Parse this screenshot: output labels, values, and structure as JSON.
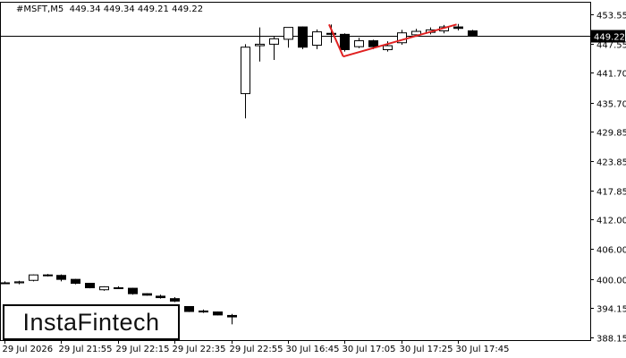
{
  "header": {
    "symbol": "#MSFT,M5",
    "ohlc": "449.34 449.34 449.21 449.22"
  },
  "logo": {
    "text": "InstaFintech"
  },
  "colors": {
    "pattern_line": "#e02020",
    "bull_fill": "#ffffff",
    "bear_fill": "#000000",
    "grid": "#000000",
    "current_price_bg": "#000000",
    "current_price_text": "#ffffff"
  },
  "chart_data": {
    "type": "candlestick",
    "symbol": "#MSFT",
    "timeframe": "M5",
    "y_ticks": [
      453.55,
      447.55,
      441.7,
      435.7,
      429.85,
      423.85,
      417.85,
      412.0,
      406.0,
      400.0,
      394.15,
      388.15
    ],
    "ylim": [
      388.15,
      453.55
    ],
    "current_price": "449.22",
    "x_ticks": [
      {
        "i": 0,
        "label": "29 Jul 2026"
      },
      {
        "i": 4,
        "label": "29 Jul 21:55"
      },
      {
        "i": 8,
        "label": "29 Jul 22:15"
      },
      {
        "i": 12,
        "label": "29 Jul 22:35"
      },
      {
        "i": 16,
        "label": "29 Jul 22:55"
      },
      {
        "i": 20,
        "label": "30 Jul 16:45"
      },
      {
        "i": 24,
        "label": "30 Jul 17:05"
      },
      {
        "i": 28,
        "label": "30 Jul 17:25"
      },
      {
        "i": 32,
        "label": "30 Jul 17:45"
      }
    ],
    "candles": [
      [
        399.2,
        399.5,
        399.0,
        399.2
      ],
      [
        399.2,
        399.6,
        398.9,
        399.4
      ],
      [
        399.7,
        400.9,
        399.5,
        400.8
      ],
      [
        400.8,
        401.0,
        400.5,
        400.7
      ],
      [
        400.7,
        400.9,
        399.5,
        399.9
      ],
      [
        399.9,
        400.0,
        398.9,
        399.1
      ],
      [
        399.1,
        399.2,
        398.1,
        398.2
      ],
      [
        397.8,
        398.5,
        397.6,
        398.4
      ],
      [
        398.2,
        398.5,
        398.0,
        398.1
      ],
      [
        398.1,
        398.2,
        396.8,
        397.0
      ],
      [
        397.0,
        397.1,
        396.6,
        396.7
      ],
      [
        396.5,
        396.8,
        396.0,
        396.2
      ],
      [
        396.0,
        396.3,
        395.3,
        395.5
      ],
      [
        394.4,
        394.4,
        393.3,
        393.4
      ],
      [
        393.5,
        393.8,
        393.1,
        393.3
      ],
      [
        393.3,
        393.4,
        392.6,
        392.7
      ],
      [
        392.6,
        392.9,
        390.8,
        392.3
      ],
      [
        437.5,
        447.5,
        432.5,
        446.9
      ],
      [
        447.2,
        450.9,
        444.0,
        447.5
      ],
      [
        447.5,
        449.0,
        444.3,
        448.6
      ],
      [
        448.5,
        450.9,
        446.8,
        450.9
      ],
      [
        451.0,
        451.1,
        446.5,
        446.9
      ],
      [
        447.3,
        450.5,
        446.5,
        450.0
      ],
      [
        449.7,
        451.5,
        447.8,
        449.5
      ],
      [
        449.5,
        449.7,
        446.0,
        446.4
      ],
      [
        447.0,
        448.8,
        446.7,
        448.2
      ],
      [
        448.2,
        448.4,
        446.5,
        447.0
      ],
      [
        446.4,
        448.1,
        446.0,
        447.2
      ],
      [
        447.8,
        450.4,
        447.4,
        449.8
      ],
      [
        449.4,
        450.6,
        449.0,
        450.1
      ],
      [
        449.9,
        450.9,
        449.5,
        450.4
      ],
      [
        450.2,
        451.4,
        449.7,
        451.0
      ],
      [
        451.0,
        451.6,
        450.3,
        450.7
      ],
      [
        450.2,
        450.4,
        449.1,
        449.22
      ]
    ],
    "pattern_lines": [
      {
        "from": [
          22.9,
          451.5
        ],
        "to": [
          23.9,
          445.0
        ]
      },
      {
        "from": [
          23.9,
          445.0
        ],
        "to": [
          31.9,
          451.5
        ]
      }
    ]
  }
}
